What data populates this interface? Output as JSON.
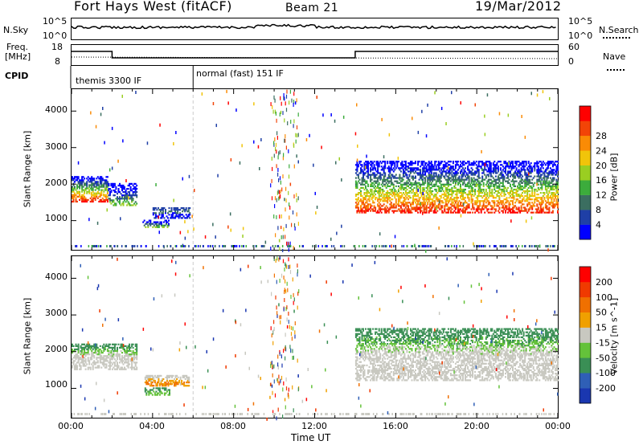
{
  "header": {
    "title": "Fort Hays West (fitACF)",
    "beam": "Beam 21",
    "date": "19/Mar/2012"
  },
  "summary": {
    "nsky_label": "N.Sky",
    "nsky_max": "10^5",
    "nsky_min": "10^0",
    "nsearch_label": "N.Search",
    "nsearch_max": "10^5",
    "nsearch_min": "10^0",
    "freq_label": "Freq.",
    "freq_unit": "[MHz]",
    "freq_max": "18",
    "freq_min": "8",
    "nave_label": "Nave",
    "nave_max": "60",
    "nave_min": "0",
    "cpid_label": "CPID",
    "cpid_1": "themis 3300 IF",
    "cpid_2": "normal (fast) 151 IF"
  },
  "chart_data": [
    {
      "type": "heatmap",
      "panel": "power",
      "ylabel": "Slant Range [km]",
      "yticks": [
        "1000",
        "2000",
        "3000",
        "4000"
      ],
      "ylim": [
        200,
        4600
      ],
      "colorbar_label": "Power [dB]",
      "colorbar_ticks": [
        "4",
        "8",
        "12",
        "16",
        "20",
        "24",
        "28"
      ],
      "colors": [
        "#0000ff",
        "#1f3fa6",
        "#3b6e60",
        "#3cac3c",
        "#9ace21",
        "#f1c40a",
        "#fa8b05",
        "#f24407",
        "#ff0000"
      ],
      "echo_regions": [
        {
          "t_start": 0.0,
          "t_end": 1.8,
          "range_low": 1500,
          "range_high": 2200,
          "level": "high"
        },
        {
          "t_start": 1.8,
          "t_end": 3.2,
          "range_low": 1400,
          "range_high": 2000,
          "level": "mid"
        },
        {
          "t_start": 3.5,
          "t_end": 4.8,
          "range_low": 800,
          "range_high": 1000,
          "level": "mid"
        },
        {
          "t_start": 4.0,
          "t_end": 5.8,
          "range_low": 1050,
          "range_high": 1350,
          "level": "low"
        },
        {
          "t_start": 14.0,
          "t_end": 24.0,
          "range_low": 1200,
          "range_high": 2600,
          "level": "high"
        }
      ]
    },
    {
      "type": "heatmap",
      "panel": "velocity",
      "ylabel": "Slant Range [km]",
      "yticks": [
        "1000",
        "2000",
        "3000",
        "4000"
      ],
      "ylim": [
        200,
        4600
      ],
      "colorbar_label": "Velocity [m s^-1]",
      "colorbar_ticks": [
        "200",
        "100",
        "50",
        "15",
        "-15",
        "-50",
        "-100",
        "-200"
      ],
      "colors": [
        "#1a37b0",
        "#2f5fb6",
        "#3a8f55",
        "#64c23a",
        "#c8c8c0",
        "#f0a000",
        "#f07000",
        "#f03a00",
        "#ff0000"
      ],
      "echo_regions": [
        {
          "t_start": 0.0,
          "t_end": 3.2,
          "range_low": 1500,
          "range_high": 2200,
          "level": "ground"
        },
        {
          "t_start": 3.6,
          "t_end": 4.8,
          "range_low": 800,
          "range_high": 1000,
          "level": "green"
        },
        {
          "t_start": 3.6,
          "t_end": 5.8,
          "range_low": 1050,
          "range_high": 1350,
          "level": "orange"
        },
        {
          "t_start": 14.0,
          "t_end": 24.0,
          "range_low": 1200,
          "range_high": 2600,
          "level": "ground"
        }
      ]
    }
  ],
  "xaxis": {
    "label": "Time UT",
    "ticks": [
      "00:00",
      "04:00",
      "08:00",
      "12:00",
      "16:00",
      "20:00",
      "00:00"
    ]
  }
}
